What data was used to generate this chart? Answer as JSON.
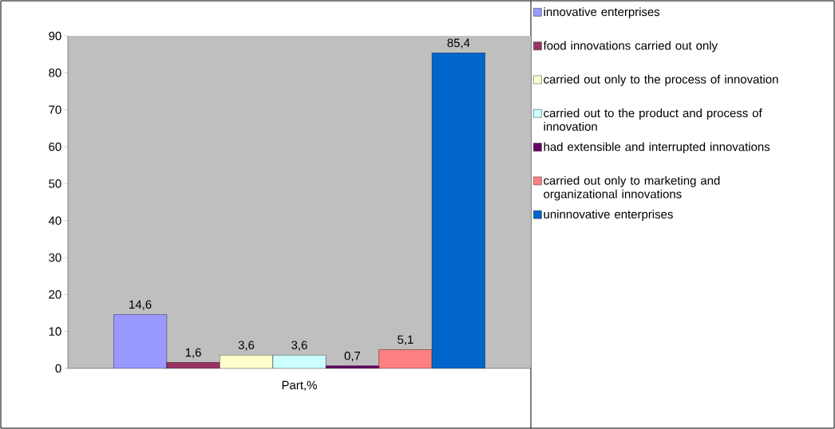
{
  "chart_data": {
    "type": "bar",
    "categories": [
      "Part,%"
    ],
    "series": [
      {
        "name": "innovative enterprises",
        "color": "#9999ff",
        "values": [
          14.6
        ],
        "value_labels": [
          "14,6"
        ]
      },
      {
        "name": "food innovations carried out only",
        "color": "#993366",
        "values": [
          1.6
        ],
        "value_labels": [
          "1,6"
        ]
      },
      {
        "name": "carried out only to the process of innovation",
        "color": "#ffffcc",
        "values": [
          3.6
        ],
        "value_labels": [
          "3,6"
        ]
      },
      {
        "name": "carried out to the product and process of innovation",
        "color": "#ccffff",
        "values": [
          3.6
        ],
        "value_labels": [
          "3,6"
        ]
      },
      {
        "name": "had extensible and interrupted innovations",
        "color": "#660066",
        "values": [
          0.7
        ],
        "value_labels": [
          "0,7"
        ]
      },
      {
        "name": "carried out only to marketing and organizational innovations",
        "color": "#ff8080",
        "values": [
          5.1
        ],
        "value_labels": [
          "5,1"
        ]
      },
      {
        "name": "uninnovative enterprises",
        "color": "#0066cc",
        "values": [
          85.4
        ],
        "value_labels": [
          "85,4"
        ]
      }
    ],
    "ylim": [
      0,
      90
    ],
    "yticks": [
      0,
      10,
      20,
      30,
      40,
      50,
      60,
      70,
      80,
      90
    ],
    "grid": false,
    "legend": "right"
  }
}
